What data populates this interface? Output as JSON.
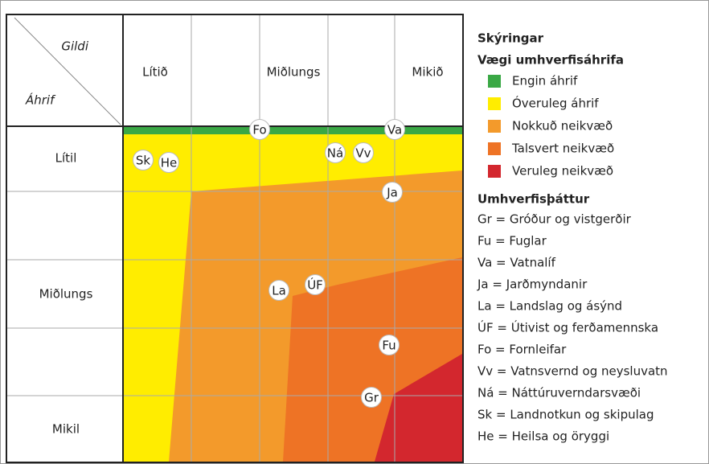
{
  "corner": {
    "top": "Gildi",
    "bottom": "Áhrif"
  },
  "columns": [
    "Lítið",
    "Miðlungs",
    "Mikið"
  ],
  "rows": [
    "Lítil",
    "Miðlungs",
    "Mikil"
  ],
  "markers": [
    "Fo",
    "Va",
    "Sk",
    "He",
    "Ná",
    "Vv",
    "Ja",
    "La",
    "ÚF",
    "Fu",
    "Gr"
  ],
  "legend": {
    "title": "Skýringar",
    "impact_title": "Vægi umhverfisáhrifa",
    "impact": [
      {
        "label": "Engin áhrif",
        "color": "#3aa845"
      },
      {
        "label": "Óveruleg áhrif",
        "color": "#ffed00"
      },
      {
        "label": "Nokkuð neikvæð",
        "color": "#f39a2b"
      },
      {
        "label": "Talsvert neikvæð",
        "color": "#ee7325"
      },
      {
        "label": "Veruleg neikvæð",
        "color": "#d3272e"
      }
    ],
    "factor_title": "Umhverfisþáttur",
    "factors": [
      "Gr = Gróður og vistgerðir",
      "Fu = Fuglar",
      "Va = Vatnalíf",
      "Ja = Jarðmyndanir",
      "La = Landslag og ásýnd",
      "ÚF = Útivist og ferðamennska",
      "Fo = Fornleifar",
      "Vv = Vatnsvernd og neysluvatn",
      "Ná = Náttúruverndarsvæði",
      "Sk = Landnotkun og skipulag",
      "He = Heilsa og öryggi"
    ]
  }
}
